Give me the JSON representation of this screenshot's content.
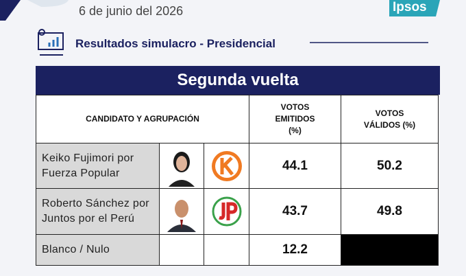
{
  "header": {
    "date": "6 de junio del 2026",
    "logo": "Ipsos",
    "subtitle": "Resultados simulacro - Presidencial"
  },
  "table": {
    "title": "Segunda vuelta",
    "columns": [
      "CANDIDATO Y AGRUPACIÓN",
      "VOTOS EMITIDOS (%)",
      "VOTOS VÁLIDOS (%)"
    ],
    "rows": [
      {
        "name": "Keiko Fujimori por Fuerza Popular",
        "emitidos": 44.1,
        "validos": 50.2
      },
      {
        "name": "Roberto Sánchez por Juntos por el Perú",
        "emitidos": 43.7,
        "validos": 49.8
      },
      {
        "name": "Blanco / Nulo",
        "emitidos": 12.2
      }
    ]
  }
}
